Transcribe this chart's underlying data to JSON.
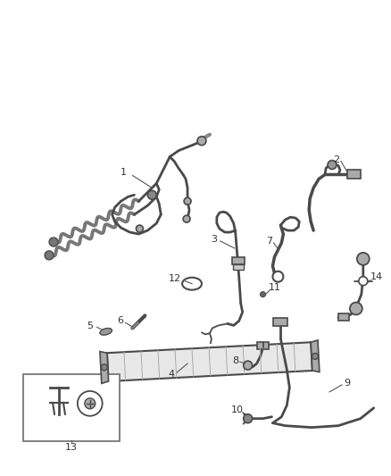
{
  "bg_color": "#ffffff",
  "fig_width": 4.38,
  "fig_height": 5.33,
  "dpi": 100,
  "line_color": "#4a4a4a",
  "label_font_size": 8,
  "label_color": "#333333",
  "leader_color": "#555555",
  "part_color": "#5a5a5a",
  "part_fill": "#c8c8c8",
  "part_fill_light": "#e8e8e8",
  "corrugated_color": "#666666"
}
